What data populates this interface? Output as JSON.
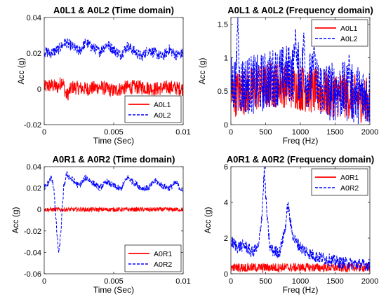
{
  "chart_data": [
    {
      "type": "line",
      "title": "A0L1 & A0L2 (Time domain)",
      "xlabel": "Time (Sec)",
      "ylabel": "Acc (g)",
      "xlim": [
        0,
        0.01
      ],
      "ylim": [
        -0.02,
        0.04
      ],
      "xticks": [
        "0",
        "0.005",
        "0.01"
      ],
      "yticks": [
        "-0.02",
        "0",
        "0.02",
        "0.04"
      ],
      "legend": "bottom-right",
      "grid": false,
      "series": [
        {
          "name": "A0L1",
          "color": "#ff0000",
          "style": "solid",
          "x": [
            0,
            0.0005,
            0.001,
            0.0013,
            0.0016,
            0.002,
            0.003,
            0.004,
            0.005,
            0.006,
            0.007,
            0.008,
            0.009,
            0.01
          ],
          "y": [
            0.001,
            0.002,
            0.001,
            0.005,
            -0.004,
            0.001,
            0.0,
            0.001,
            -0.001,
            0.001,
            0.001,
            0.0,
            0.001,
            0.0
          ],
          "noise": 0.004
        },
        {
          "name": "A0L2",
          "color": "#0000ff",
          "style": "dashed",
          "x": [
            0,
            0.0005,
            0.001,
            0.0015,
            0.002,
            0.0025,
            0.003,
            0.0035,
            0.004,
            0.0045,
            0.005,
            0.0055,
            0.006,
            0.0065,
            0.007,
            0.0075,
            0.008,
            0.0085,
            0.009,
            0.0095,
            0.01
          ],
          "y": [
            0.021,
            0.02,
            0.022,
            0.026,
            0.024,
            0.021,
            0.026,
            0.023,
            0.021,
            0.025,
            0.022,
            0.019,
            0.024,
            0.021,
            0.018,
            0.022,
            0.02,
            0.018,
            0.022,
            0.019,
            0.02
          ],
          "noise": 0.003
        }
      ]
    },
    {
      "type": "line",
      "title": "A0L1 & A0L2 (Frequency domain)",
      "xlabel": "Freq (Hz)",
      "ylabel": "Acc (g)",
      "xlim": [
        0,
        2000
      ],
      "ylim": [
        0,
        1.6
      ],
      "xticks": [
        "0",
        "500",
        "1000",
        "1500",
        "2000"
      ],
      "yticks": [
        "0",
        "0.5",
        "1",
        "1.5"
      ],
      "legend": "top-right",
      "grid": false,
      "series": [
        {
          "name": "A0L1",
          "color": "#ff0000",
          "style": "solid",
          "x": [
            0,
            200,
            400,
            600,
            800,
            1000,
            1200,
            1400,
            1600,
            1800,
            2000
          ],
          "y": [
            0.45,
            0.5,
            0.55,
            0.6,
            0.6,
            0.55,
            0.5,
            0.45,
            0.45,
            0.4,
            0.35
          ],
          "noise": 0.35
        },
        {
          "name": "A0L2",
          "color": "#0000ff",
          "style": "dashed",
          "x": [
            0,
            200,
            400,
            600,
            800,
            1000,
            1200,
            1400,
            1600,
            1800,
            2000
          ],
          "y": [
            0.6,
            0.6,
            0.6,
            0.7,
            0.75,
            0.8,
            0.6,
            0.5,
            0.5,
            0.45,
            0.4
          ],
          "noise": 0.45,
          "peaks": [
            [
              100,
              1.6
            ],
            [
              930,
              1.45
            ],
            [
              1050,
              1.4
            ],
            [
              1200,
              1.2
            ],
            [
              1700,
              1.05
            ]
          ]
        }
      ]
    },
    {
      "type": "line",
      "title": "A0R1 & A0R2 (Time domain)",
      "xlabel": "Time (Sec)",
      "ylabel": "Acc (g)",
      "xlim": [
        0,
        0.01
      ],
      "ylim": [
        -0.06,
        0.04
      ],
      "xticks": [
        "0",
        "0.005",
        "0.01"
      ],
      "yticks": [
        "-0.06",
        "-0.04",
        "-0.02",
        "0",
        "0.02",
        "0.04"
      ],
      "legend": "bottom-right",
      "grid": false,
      "series": [
        {
          "name": "A0R1",
          "color": "#ff0000",
          "style": "solid",
          "x": [
            0,
            0.0025,
            0.005,
            0.0075,
            0.01
          ],
          "y": [
            0.0,
            0.0,
            0.0,
            0.0,
            0.0
          ],
          "noise": 0.002
        },
        {
          "name": "A0R2",
          "color": "#0000ff",
          "style": "dashed",
          "x": [
            0,
            0.0003,
            0.0005,
            0.0007,
            0.0009,
            0.00105,
            0.0012,
            0.0014,
            0.0016,
            0.002,
            0.0025,
            0.003,
            0.0035,
            0.004,
            0.0045,
            0.005,
            0.0055,
            0.006,
            0.0065,
            0.007,
            0.0075,
            0.008,
            0.0085,
            0.009,
            0.0095,
            0.01
          ],
          "y": [
            0.02,
            0.025,
            0.03,
            0.02,
            -0.02,
            -0.042,
            -0.02,
            0.02,
            0.033,
            0.028,
            0.022,
            0.03,
            0.025,
            0.02,
            0.026,
            0.022,
            0.019,
            0.03,
            0.025,
            0.02,
            0.02,
            0.027,
            0.022,
            0.02,
            0.025,
            0.016
          ],
          "noise": 0.003
        }
      ]
    },
    {
      "type": "line",
      "title": "A0R1 & A0R2 (Frequency domain)",
      "xlabel": "Freq (Hz)",
      "ylabel": "Acc (g)",
      "xlim": [
        0,
        2000
      ],
      "ylim": [
        0,
        6
      ],
      "xticks": [
        "0",
        "500",
        "1000",
        "1500",
        "2000"
      ],
      "yticks": [
        "0",
        "2",
        "4",
        "6"
      ],
      "legend": "top-right",
      "grid": false,
      "series": [
        {
          "name": "A0R1",
          "color": "#ff0000",
          "style": "solid",
          "x": [
            0,
            500,
            1000,
            1500,
            2000
          ],
          "y": [
            0.35,
            0.35,
            0.35,
            0.35,
            0.35
          ],
          "noise": 0.25
        },
        {
          "name": "A0R2",
          "color": "#0000ff",
          "style": "dashed",
          "x": [
            0,
            100,
            200,
            300,
            400,
            450,
            480,
            520,
            560,
            600,
            700,
            780,
            820,
            860,
            900,
            1000,
            1100,
            1200,
            1300,
            1400,
            1500,
            1600,
            1700,
            1800,
            1900,
            2000
          ],
          "y": [
            1.8,
            1.5,
            1.6,
            1.2,
            1.5,
            3.5,
            5.8,
            3.2,
            1.5,
            1.3,
            1.2,
            2.5,
            3.9,
            2.8,
            2.0,
            1.5,
            1.2,
            1.0,
            0.9,
            0.8,
            0.7,
            0.6,
            0.6,
            0.55,
            0.5,
            0.5
          ],
          "noise": 0.35
        }
      ]
    }
  ]
}
